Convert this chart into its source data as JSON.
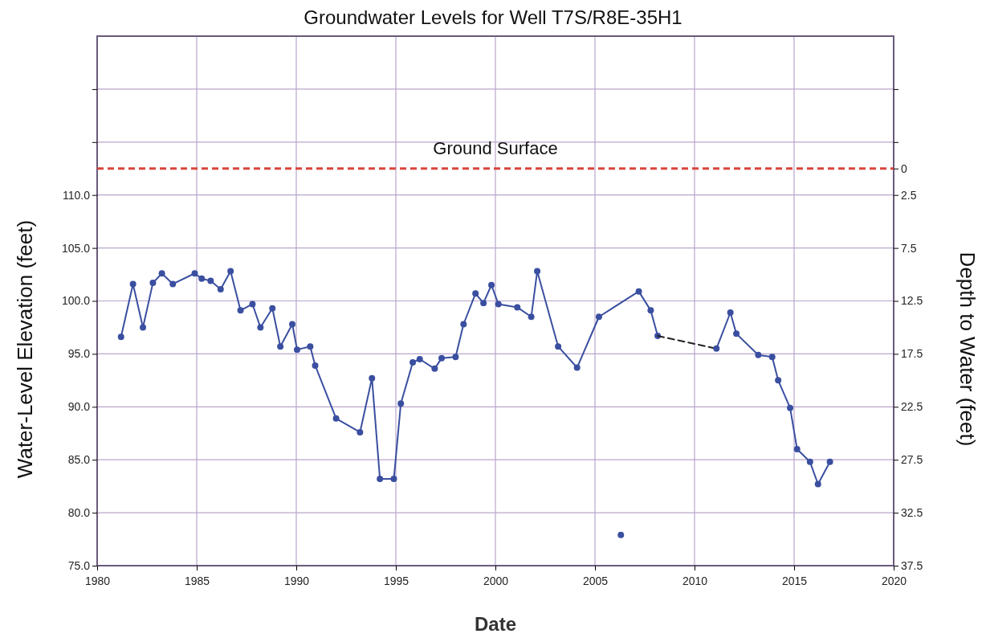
{
  "chart_data": {
    "type": "line",
    "title": "Groundwater Levels for Well T7S/R8E-35H1",
    "xlabel": "Date",
    "ylabel": "Water-Level Elevation (feet)",
    "y2label": "Depth to Water (feet)",
    "xlim": [
      1980,
      2020
    ],
    "xticks": [
      1980,
      1985,
      1990,
      1995,
      2000,
      2005,
      2010,
      2015,
      2020
    ],
    "ylim": [
      75,
      125
    ],
    "yticks": [
      {
        "value": 75,
        "label": "75.0"
      },
      {
        "value": 80,
        "label": "80.0"
      },
      {
        "value": 85,
        "label": "85.0"
      },
      {
        "value": 90,
        "label": "90.0"
      },
      {
        "value": 95,
        "label": "95.0"
      },
      {
        "value": 100,
        "label": "100.0"
      },
      {
        "value": 105,
        "label": "105.0"
      },
      {
        "value": 110,
        "label": "110.0"
      },
      {
        "value": 115,
        "label": null
      },
      {
        "value": 120,
        "label": null
      }
    ],
    "y2lim": [
      37.5,
      -12.5
    ],
    "y2ticks": [
      {
        "value": -7.5,
        "label": null
      },
      {
        "value": -2.5,
        "label": null
      },
      0,
      2.5,
      7.5,
      12.5,
      17.5,
      22.5,
      27.5,
      32.5,
      37.5
    ],
    "grid": true,
    "marker": "circle",
    "ref_lines": [
      {
        "axis": "y",
        "value": 112.5,
        "label": "Ground Surface",
        "color": "#d9453d",
        "line_style": "dashed"
      }
    ],
    "series": [
      {
        "color": "#3a4fa0",
        "line_style": "solid",
        "x": [
          1981.2,
          1981.8,
          1982.3,
          1982.8,
          1983.25,
          1983.8,
          1984.9,
          1985.25,
          1985.7,
          1986.2,
          1986.7,
          1987.2,
          1987.8,
          1988.2,
          1988.8,
          1989.2,
          1989.8,
          1990.04,
          1990.7,
          1990.95,
          1992.0,
          1993.2,
          1993.8,
          1994.2,
          1994.9,
          1995.25,
          1995.85,
          1996.2,
          1996.95,
          1997.3,
          1998.0,
          1998.4,
          1999.0,
          1999.4,
          1999.8,
          2000.15,
          2001.1,
          2001.8,
          2002.1,
          2003.15,
          2004.1,
          2005.2,
          2007.2,
          2007.8,
          2008.15
        ],
        "values": [
          96.6,
          101.6,
          97.5,
          101.7,
          102.6,
          101.6,
          102.6,
          102.1,
          101.9,
          101.1,
          102.8,
          99.1,
          99.7,
          97.5,
          99.3,
          95.7,
          97.8,
          95.4,
          95.7,
          93.9,
          88.9,
          87.6,
          92.7,
          83.2,
          83.2,
          90.3,
          94.2,
          94.5,
          93.6,
          94.6,
          94.7,
          97.8,
          100.7,
          99.8,
          101.5,
          99.7,
          99.4,
          98.5,
          102.8,
          95.7,
          93.7,
          98.5,
          100.9,
          99.1,
          96.7
        ]
      },
      {
        "type": "line",
        "color": "#222222",
        "line_style": "dashed",
        "marker": "none",
        "x": [
          2008.15,
          2011.1
        ],
        "values": [
          96.7,
          95.5
        ]
      },
      {
        "color": "#3a4fa0",
        "line_style": "solid",
        "x": [
          2011.1,
          2011.8,
          2012.1,
          2013.2,
          2013.9,
          2014.2,
          2014.8,
          2015.15,
          2015.8,
          2016.2,
          2016.8
        ],
        "values": [
          95.5,
          98.9,
          96.9,
          94.9,
          94.7,
          92.5,
          89.9,
          86.0,
          84.8,
          82.7,
          84.8
        ]
      },
      {
        "type": "scatter",
        "color": "#3a4fa0",
        "x": [
          2006.3
        ],
        "values": [
          77.9
        ]
      }
    ]
  }
}
